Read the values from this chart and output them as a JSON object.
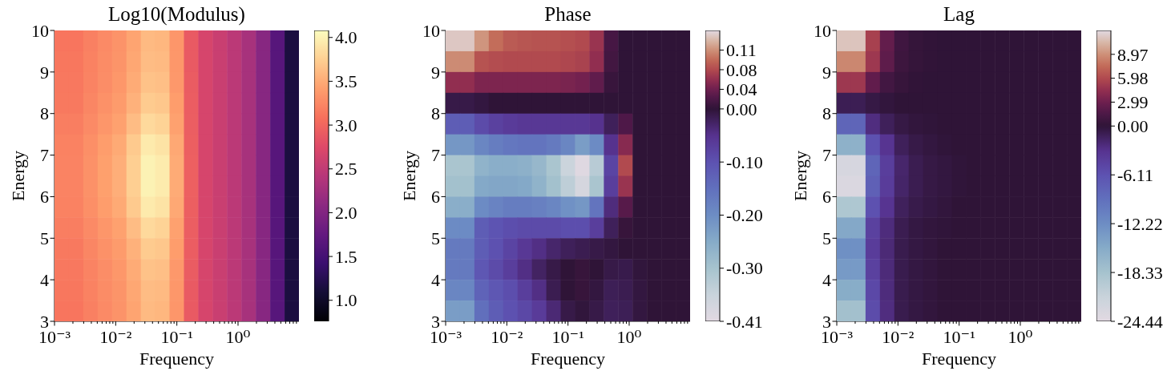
{
  "chart_data": [
    {
      "type": "heatmap",
      "title": "Log10(Modulus)",
      "xlabel": "Frequency",
      "ylabel": "Energy",
      "xlim": [
        0.001,
        9.9
      ],
      "log": "x",
      "xticks": [
        {
          "value": 0.001,
          "label": "10⁻³"
        },
        {
          "value": 0.002,
          "label": null
        },
        {
          "value": 0.003,
          "label": null
        },
        {
          "value": 0.004,
          "label": null
        },
        {
          "value": 0.005,
          "label": null
        },
        {
          "value": 0.006,
          "label": null
        },
        {
          "value": 0.007,
          "label": null
        },
        {
          "value": 0.008,
          "label": null
        },
        {
          "value": 0.009,
          "label": null
        },
        {
          "value": 0.01,
          "label": "10⁻²"
        },
        {
          "value": 0.02,
          "label": null
        },
        {
          "value": 0.03,
          "label": null
        },
        {
          "value": 0.04,
          "label": null
        },
        {
          "value": 0.05,
          "label": null
        },
        {
          "value": 0.06,
          "label": null
        },
        {
          "value": 0.07,
          "label": null
        },
        {
          "value": 0.08,
          "label": null
        },
        {
          "value": 0.09,
          "label": null
        },
        {
          "value": 0.1,
          "label": "10⁻¹"
        },
        {
          "value": 0.2,
          "label": null
        },
        {
          "value": 0.3,
          "label": null
        },
        {
          "value": 0.4,
          "label": null
        },
        {
          "value": 0.5,
          "label": null
        },
        {
          "value": 0.6,
          "label": null
        },
        {
          "value": 0.7,
          "label": null
        },
        {
          "value": 0.8,
          "label": null
        },
        {
          "value": 0.9,
          "label": null
        },
        {
          "value": 1,
          "label": "10⁰"
        },
        {
          "value": 2,
          "label": null
        },
        {
          "value": 3,
          "label": null
        },
        {
          "value": 4,
          "label": null
        },
        {
          "value": 5,
          "label": null
        },
        {
          "value": 6,
          "label": null
        },
        {
          "value": 7,
          "label": null
        },
        {
          "value": 8,
          "label": null
        },
        {
          "value": 9,
          "label": null
        }
      ],
      "ylim": [
        3,
        10
      ],
      "yticks": [
        3,
        4,
        5,
        6,
        7,
        8,
        9,
        10
      ],
      "clim": [
        0.76,
        4.08
      ],
      "cticks": [
        {
          "value": 1,
          "label": "1.0"
        },
        1.5,
        {
          "value": 2,
          "label": "2.0"
        },
        2.5,
        {
          "value": 3,
          "label": "3.0"
        },
        3.5,
        {
          "value": 4,
          "label": "4.0"
        }
      ],
      "cells": [
        [
          3.12,
          3.12,
          3.2,
          3.27,
          3.33,
          3.45,
          3.6,
          3.58,
          3.35,
          2.9,
          2.68,
          2.57,
          2.45,
          2.3,
          2.05,
          1.65,
          1.15
        ],
        [
          3.13,
          3.13,
          3.21,
          3.28,
          3.34,
          3.47,
          3.62,
          3.6,
          3.36,
          2.9,
          2.68,
          2.57,
          2.45,
          2.3,
          2.05,
          1.65,
          1.15
        ],
        [
          3.14,
          3.14,
          3.22,
          3.29,
          3.36,
          3.5,
          3.66,
          3.64,
          3.37,
          2.91,
          2.68,
          2.57,
          2.45,
          2.3,
          2.05,
          1.65,
          1.15
        ],
        [
          3.15,
          3.15,
          3.24,
          3.32,
          3.39,
          3.54,
          3.72,
          3.69,
          3.4,
          2.92,
          2.68,
          2.57,
          2.45,
          2.3,
          2.05,
          1.65,
          1.15
        ],
        [
          3.18,
          3.18,
          3.27,
          3.35,
          3.43,
          3.62,
          3.82,
          3.78,
          3.43,
          2.93,
          2.68,
          2.57,
          2.45,
          2.3,
          2.05,
          1.65,
          1.15
        ],
        [
          3.21,
          3.21,
          3.3,
          3.4,
          3.49,
          3.71,
          3.94,
          3.89,
          3.48,
          2.94,
          2.68,
          2.57,
          2.45,
          2.3,
          2.05,
          1.65,
          1.15
        ],
        [
          3.22,
          3.22,
          3.32,
          3.42,
          3.52,
          3.75,
          4,
          3.95,
          3.5,
          2.95,
          2.68,
          2.57,
          2.45,
          2.3,
          2.05,
          1.65,
          1.15
        ],
        [
          3.22,
          3.22,
          3.32,
          3.42,
          3.52,
          3.75,
          4,
          3.95,
          3.5,
          2.95,
          2.68,
          2.57,
          2.45,
          2.3,
          2.05,
          1.65,
          1.15
        ],
        [
          3.21,
          3.21,
          3.3,
          3.4,
          3.49,
          3.71,
          3.94,
          3.89,
          3.48,
          2.94,
          2.68,
          2.57,
          2.45,
          2.3,
          2.05,
          1.65,
          1.15
        ],
        [
          3.18,
          3.18,
          3.27,
          3.35,
          3.43,
          3.62,
          3.82,
          3.78,
          3.43,
          2.93,
          2.68,
          2.57,
          2.45,
          2.3,
          2.05,
          1.65,
          1.15
        ],
        [
          3.15,
          3.15,
          3.24,
          3.32,
          3.39,
          3.54,
          3.72,
          3.69,
          3.4,
          2.92,
          2.68,
          2.57,
          2.45,
          2.3,
          2.05,
          1.65,
          1.15
        ],
        [
          3.14,
          3.14,
          3.22,
          3.29,
          3.36,
          3.5,
          3.66,
          3.64,
          3.37,
          2.91,
          2.68,
          2.57,
          2.45,
          2.3,
          2.05,
          1.65,
          1.15
        ],
        [
          3.13,
          3.13,
          3.21,
          3.28,
          3.34,
          3.47,
          3.62,
          3.6,
          3.36,
          2.9,
          2.68,
          2.57,
          2.45,
          2.3,
          2.05,
          1.65,
          1.15
        ],
        [
          3.12,
          3.12,
          3.2,
          3.27,
          3.33,
          3.45,
          3.6,
          3.58,
          3.35,
          2.9,
          2.68,
          2.57,
          2.45,
          2.3,
          2.05,
          1.65,
          1.15
        ]
      ]
    },
    {
      "type": "heatmap",
      "title": "Phase",
      "xlabel": "Frequency",
      "ylabel": "Energy",
      "xlim": [
        0.001,
        9.9
      ],
      "log": "x",
      "xticks": [
        {
          "value": 0.001,
          "label": "10⁻³"
        },
        {
          "value": 0.002,
          "label": null
        },
        {
          "value": 0.003,
          "label": null
        },
        {
          "value": 0.004,
          "label": null
        },
        {
          "value": 0.005,
          "label": null
        },
        {
          "value": 0.006,
          "label": null
        },
        {
          "value": 0.007,
          "label": null
        },
        {
          "value": 0.008,
          "label": null
        },
        {
          "value": 0.009,
          "label": null
        },
        {
          "value": 0.01,
          "label": "10⁻²"
        },
        {
          "value": 0.02,
          "label": null
        },
        {
          "value": 0.03,
          "label": null
        },
        {
          "value": 0.04,
          "label": null
        },
        {
          "value": 0.05,
          "label": null
        },
        {
          "value": 0.06,
          "label": null
        },
        {
          "value": 0.07,
          "label": null
        },
        {
          "value": 0.08,
          "label": null
        },
        {
          "value": 0.09,
          "label": null
        },
        {
          "value": 0.1,
          "label": "10⁻¹"
        },
        {
          "value": 0.2,
          "label": null
        },
        {
          "value": 0.3,
          "label": null
        },
        {
          "value": 0.4,
          "label": null
        },
        {
          "value": 0.5,
          "label": null
        },
        {
          "value": 0.6,
          "label": null
        },
        {
          "value": 0.7,
          "label": null
        },
        {
          "value": 0.8,
          "label": null
        },
        {
          "value": 0.9,
          "label": null
        },
        {
          "value": 1,
          "label": "10⁰"
        },
        {
          "value": 2,
          "label": null
        },
        {
          "value": 3,
          "label": null
        },
        {
          "value": 4,
          "label": null
        },
        {
          "value": 5,
          "label": null
        },
        {
          "value": 6,
          "label": null
        },
        {
          "value": 7,
          "label": null
        },
        {
          "value": 8,
          "label": null
        },
        {
          "value": 9,
          "label": null
        }
      ],
      "ylim": [
        3,
        10
      ],
      "yticks": [
        3,
        4,
        5,
        6,
        7,
        8,
        9,
        10
      ],
      "clim": [
        -0.406,
        0.15
      ],
      "cticks": [
        {
          "value": -0.406,
          "label": "-0.41"
        },
        {
          "value": -0.3045,
          "label": "-0.30"
        },
        {
          "value": -0.203,
          "label": "-0.20"
        },
        {
          "value": -0.1015,
          "label": "-0.10"
        },
        {
          "value": 0,
          "label": "0.00"
        },
        {
          "value": 0.0375,
          "label": "0.04"
        },
        {
          "value": 0.075,
          "label": "0.08"
        },
        {
          "value": 0.1125,
          "label": "0.11"
        }
      ],
      "cells": [
        [
          0.14,
          0.14,
          0.115,
          0.095,
          0.085,
          0.082,
          0.08,
          0.08,
          0.078,
          0.075,
          0.06,
          0.015,
          0,
          0,
          0,
          0,
          0
        ],
        [
          0.11,
          0.11,
          0.08,
          0.077,
          0.075,
          0.075,
          0.075,
          0.075,
          0.073,
          0.07,
          0.055,
          0.012,
          0,
          0,
          0,
          0,
          0
        ],
        [
          0.055,
          0.055,
          0.045,
          0.045,
          0.045,
          0.045,
          0.045,
          0.045,
          0.043,
          0.04,
          0.03,
          0.006,
          0,
          0,
          0,
          0,
          0
        ],
        [
          -0.01,
          -0.01,
          -0.005,
          0,
          0,
          0,
          0,
          0,
          0,
          0,
          0,
          0,
          0,
          0,
          0,
          0,
          0
        ],
        [
          -0.12,
          -0.12,
          -0.09,
          -0.075,
          -0.065,
          -0.06,
          -0.06,
          -0.06,
          -0.06,
          -0.06,
          -0.05,
          -0.02,
          0.02,
          0,
          0,
          0,
          0
        ],
        [
          -0.22,
          -0.22,
          -0.19,
          -0.175,
          -0.165,
          -0.16,
          -0.16,
          -0.17,
          -0.19,
          -0.23,
          -0.2,
          -0.05,
          0.05,
          0,
          0,
          0,
          0
        ],
        [
          -0.31,
          -0.31,
          -0.27,
          -0.26,
          -0.26,
          -0.265,
          -0.28,
          -0.31,
          -0.36,
          -0.4,
          -0.33,
          -0.08,
          0.075,
          0,
          0,
          0,
          0
        ],
        [
          -0.3,
          -0.3,
          -0.25,
          -0.245,
          -0.245,
          -0.25,
          -0.27,
          -0.3,
          -0.34,
          -0.38,
          -0.31,
          -0.07,
          0.06,
          0,
          0,
          0,
          0
        ],
        [
          -0.26,
          -0.26,
          -0.2,
          -0.185,
          -0.175,
          -0.175,
          -0.18,
          -0.19,
          -0.21,
          -0.22,
          -0.16,
          -0.04,
          0.025,
          0,
          0,
          0,
          0
        ],
        [
          -0.2,
          -0.2,
          -0.12,
          -0.105,
          -0.095,
          -0.09,
          -0.09,
          -0.09,
          -0.095,
          -0.095,
          -0.07,
          -0.02,
          0.005,
          0,
          0,
          0,
          0
        ],
        [
          -0.17,
          -0.17,
          -0.12,
          -0.1,
          -0.08,
          -0.06,
          -0.045,
          -0.03,
          -0.02,
          -0.015,
          -0.01,
          -0.005,
          0,
          0,
          0,
          0,
          0
        ],
        [
          -0.17,
          -0.17,
          -0.11,
          -0.09,
          -0.07,
          -0.045,
          -0.025,
          -0.01,
          0,
          0.005,
          0,
          -0.01,
          -0.012,
          -0.003,
          0,
          0,
          0
        ],
        [
          -0.19,
          -0.19,
          -0.13,
          -0.11,
          -0.095,
          -0.07,
          -0.045,
          -0.015,
          0,
          0.005,
          -0.005,
          -0.018,
          -0.015,
          -0.005,
          0,
          0,
          0
        ],
        [
          -0.23,
          -0.23,
          -0.15,
          -0.12,
          -0.1,
          -0.085,
          -0.065,
          -0.035,
          -0.01,
          -0.003,
          -0.01,
          -0.02,
          -0.018,
          -0.005,
          0,
          0,
          0
        ]
      ]
    },
    {
      "type": "heatmap",
      "title": "Lag",
      "xlabel": "Frequency",
      "ylabel": "Energy",
      "xlim": [
        0.001,
        9.9
      ],
      "log": "x",
      "xticks": [
        {
          "value": 0.001,
          "label": "10⁻³"
        },
        {
          "value": 0.002,
          "label": null
        },
        {
          "value": 0.003,
          "label": null
        },
        {
          "value": 0.004,
          "label": null
        },
        {
          "value": 0.005,
          "label": null
        },
        {
          "value": 0.006,
          "label": null
        },
        {
          "value": 0.007,
          "label": null
        },
        {
          "value": 0.008,
          "label": null
        },
        {
          "value": 0.009,
          "label": null
        },
        {
          "value": 0.01,
          "label": "10⁻²"
        },
        {
          "value": 0.02,
          "label": null
        },
        {
          "value": 0.03,
          "label": null
        },
        {
          "value": 0.04,
          "label": null
        },
        {
          "value": 0.05,
          "label": null
        },
        {
          "value": 0.06,
          "label": null
        },
        {
          "value": 0.07,
          "label": null
        },
        {
          "value": 0.08,
          "label": null
        },
        {
          "value": 0.09,
          "label": null
        },
        {
          "value": 0.1,
          "label": "10⁻¹"
        },
        {
          "value": 0.2,
          "label": null
        },
        {
          "value": 0.3,
          "label": null
        },
        {
          "value": 0.4,
          "label": null
        },
        {
          "value": 0.5,
          "label": null
        },
        {
          "value": 0.6,
          "label": null
        },
        {
          "value": 0.7,
          "label": null
        },
        {
          "value": 0.8,
          "label": null
        },
        {
          "value": 0.9,
          "label": null
        },
        {
          "value": 1,
          "label": "10⁰"
        },
        {
          "value": 2,
          "label": null
        },
        {
          "value": 3,
          "label": null
        },
        {
          "value": 4,
          "label": null
        },
        {
          "value": 5,
          "label": null
        },
        {
          "value": 6,
          "label": null
        },
        {
          "value": 7,
          "label": null
        },
        {
          "value": 8,
          "label": null
        },
        {
          "value": 9,
          "label": null
        }
      ],
      "ylim": [
        3,
        10
      ],
      "yticks": [
        3,
        4,
        5,
        6,
        7,
        8,
        9,
        10
      ],
      "clim": [
        -24.44,
        11.96
      ],
      "cticks": [
        -24.44,
        -18.33,
        -12.22,
        -6.11,
        {
          "value": 0,
          "label": "0.00"
        },
        2.99,
        5.98,
        8.97
      ],
      "cells": [
        [
          11,
          11,
          5.5,
          2.5,
          0.8,
          0.3,
          0.1,
          0,
          0,
          0,
          0,
          0,
          0,
          0,
          0,
          0,
          0
        ],
        [
          8.6,
          8.6,
          5,
          2.3,
          0.7,
          0.3,
          0.1,
          0,
          0,
          0,
          0,
          0,
          0,
          0,
          0,
          0,
          0
        ],
        [
          5,
          5,
          2.4,
          1,
          0.4,
          0.1,
          0,
          0,
          0,
          0,
          0,
          0,
          0,
          0,
          0,
          0,
          0
        ],
        [
          -1,
          -1,
          -0.5,
          -0.2,
          0,
          0,
          0,
          0,
          0,
          0,
          0,
          0,
          0,
          0,
          0,
          0,
          0
        ],
        [
          -8,
          -8,
          -2.5,
          -1.2,
          -0.5,
          -0.2,
          -0.1,
          0,
          0,
          0,
          0,
          0,
          0,
          0,
          0,
          0,
          0
        ],
        [
          -16,
          -16,
          -6,
          -3.2,
          -1.2,
          -0.6,
          -0.3,
          -0.1,
          0,
          0,
          0,
          0,
          0,
          0,
          0,
          0,
          0
        ],
        [
          -23,
          -23,
          -8,
          -4.2,
          -1.8,
          -0.9,
          -0.5,
          -0.3,
          -0.1,
          0,
          0,
          0,
          0,
          0,
          0,
          0,
          0
        ],
        [
          -23.5,
          -23.5,
          -7.5,
          -4,
          -1.7,
          -0.9,
          -0.5,
          -0.3,
          -0.1,
          0,
          0,
          0,
          0,
          0,
          0,
          0,
          0
        ],
        [
          -19,
          -19,
          -6,
          -3.2,
          -1.3,
          -0.7,
          -0.4,
          -0.2,
          0,
          0,
          0,
          0,
          0,
          0,
          0,
          0,
          0
        ],
        [
          -15,
          -15,
          -4.5,
          -2.4,
          -0.9,
          -0.4,
          -0.2,
          -0.1,
          0,
          0,
          0,
          0,
          0,
          0,
          0,
          0,
          0
        ],
        [
          -12.5,
          -12.5,
          -4,
          -2.2,
          -0.8,
          -0.4,
          -0.2,
          0,
          0,
          0,
          0,
          0,
          0,
          0,
          0,
          0,
          0
        ],
        [
          -13.5,
          -13.5,
          -4.5,
          -2.3,
          -0.8,
          -0.4,
          -0.2,
          0,
          0,
          0,
          0,
          0,
          0,
          0,
          0,
          0,
          0
        ],
        [
          -15.5,
          -15.5,
          -5.2,
          -2.4,
          -0.8,
          -0.4,
          -0.2,
          0,
          0,
          0,
          0,
          0,
          0,
          0,
          0,
          0,
          0
        ],
        [
          -18,
          -18,
          -5.5,
          -2.5,
          -0.8,
          -0.4,
          -0.2,
          0,
          0,
          0,
          0,
          0,
          0,
          0,
          0,
          0,
          0
        ]
      ]
    }
  ]
}
